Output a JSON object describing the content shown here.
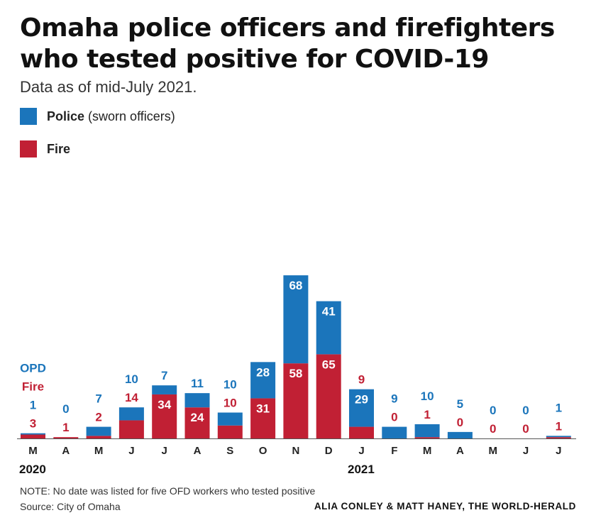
{
  "title_line1": "Omaha police officers and firefighters",
  "title_line2": "who tested positive for COVID-19",
  "subtitle": "Data as of mid-July 2021.",
  "legend": {
    "police_label": "Police",
    "police_sub": "(sworn officers)",
    "fire_label": "Fire"
  },
  "colors": {
    "police": "#1b75bb",
    "fire": "#c12034",
    "axis": "#555555"
  },
  "annotations": {
    "opd": "OPD",
    "fire": "Fire"
  },
  "year_labels": [
    "2020",
    "2021"
  ],
  "note": "NOTE: No date was listed for five OFD workers who tested positive",
  "source": "Source: City of Omaha",
  "credit": "ALIA CONLEY & MATT HANEY, THE WORLD-HERALD",
  "chart_data": {
    "type": "bar",
    "stacked": true,
    "title": "Omaha police officers and firefighters who tested positive for COVID-19",
    "categories": [
      "M",
      "A",
      "M",
      "J",
      "J",
      "A",
      "S",
      "O",
      "N",
      "D",
      "J",
      "F",
      "M",
      "A",
      "M",
      "J",
      "J"
    ],
    "years": [
      {
        "label": "2020",
        "start_index": 0
      },
      {
        "label": "2021",
        "start_index": 10
      }
    ],
    "series": [
      {
        "name": "Fire",
        "color": "#c12034",
        "values": [
          3,
          1,
          2,
          14,
          34,
          24,
          10,
          31,
          58,
          65,
          9,
          0,
          1,
          0,
          0,
          0,
          1
        ]
      },
      {
        "name": "Police",
        "color": "#1b75bb",
        "values": [
          1,
          0,
          7,
          10,
          7,
          11,
          10,
          28,
          68,
          41,
          29,
          9,
          10,
          5,
          0,
          0,
          1
        ]
      }
    ],
    "ylim": [
      0,
      133
    ],
    "grid": false
  }
}
